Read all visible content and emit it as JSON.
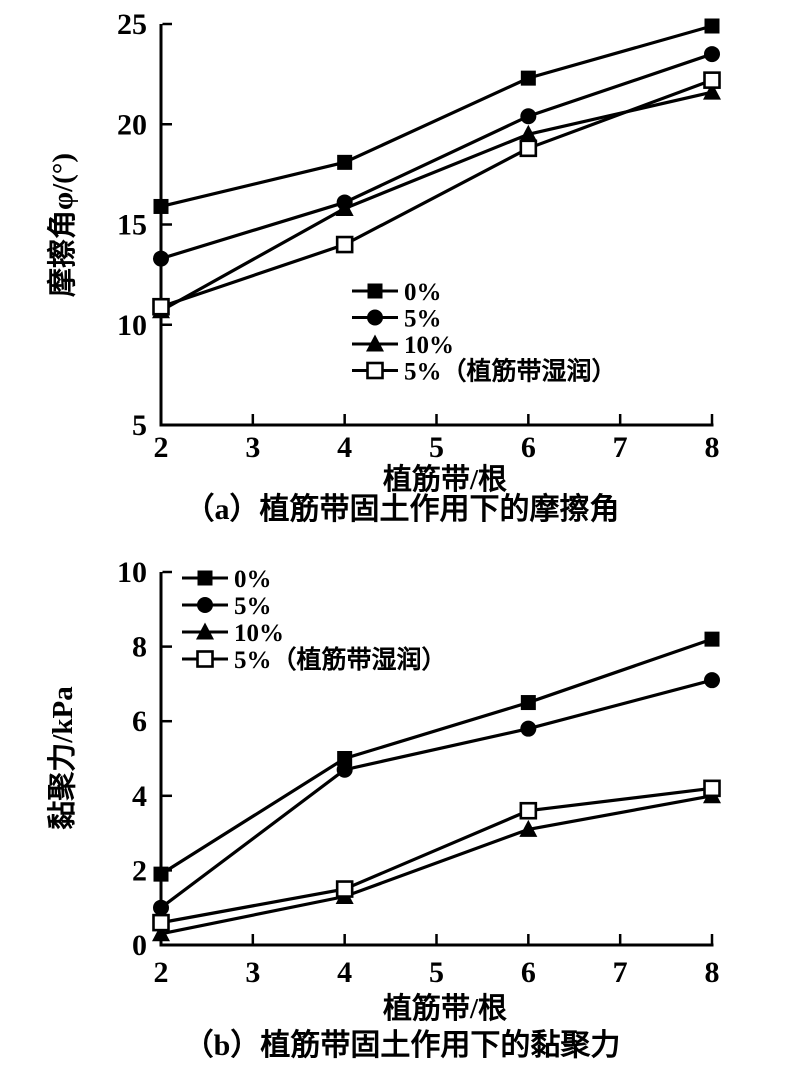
{
  "figure": {
    "background": "#ffffff",
    "ink_color": "#000000"
  },
  "chart_data": [
    {
      "type": "line",
      "panel": "a",
      "caption": "（a）植筋带固土作用下的摩擦角",
      "xlabel": "植筋带/根",
      "ylabel": "摩擦角φ/(°)",
      "x": [
        2,
        4,
        6,
        8
      ],
      "xlim": [
        2,
        8
      ],
      "ylim": [
        5,
        25
      ],
      "xticks": [
        2,
        3,
        4,
        5,
        6,
        7,
        8
      ],
      "yticks": [
        5,
        10,
        15,
        20,
        25
      ],
      "grid": false,
      "legend_position": "inside-bottom-center",
      "series": [
        {
          "name": "0%",
          "marker": "filled-square",
          "values": [
            15.9,
            18.1,
            22.3,
            24.9
          ]
        },
        {
          "name": "5%",
          "marker": "filled-circle",
          "values": [
            13.3,
            16.1,
            20.4,
            23.5
          ]
        },
        {
          "name": "10%",
          "marker": "filled-triangle",
          "values": [
            10.7,
            15.8,
            19.5,
            21.6
          ]
        },
        {
          "name": "5%（植筋带湿润）",
          "marker": "open-square",
          "values": [
            10.9,
            14.0,
            18.8,
            22.2
          ]
        }
      ]
    },
    {
      "type": "line",
      "panel": "b",
      "caption": "（b）植筋带固土作用下的黏聚力",
      "xlabel": "植筋带/根",
      "ylabel": "黏聚力/kPa",
      "x": [
        2,
        4,
        6,
        8
      ],
      "xlim": [
        2,
        8
      ],
      "ylim": [
        0,
        10
      ],
      "xticks": [
        2,
        3,
        4,
        5,
        6,
        7,
        8
      ],
      "yticks": [
        0,
        2,
        4,
        6,
        8,
        10
      ],
      "grid": false,
      "legend_position": "inside-top-left",
      "series": [
        {
          "name": "0%",
          "marker": "filled-square",
          "values": [
            1.9,
            5.0,
            6.5,
            8.2
          ]
        },
        {
          "name": "5%",
          "marker": "filled-circle",
          "values": [
            1.0,
            4.7,
            5.8,
            7.1
          ]
        },
        {
          "name": "10%",
          "marker": "filled-triangle",
          "values": [
            0.3,
            1.3,
            3.1,
            4.0
          ]
        },
        {
          "name": "5%（植筋带湿润）",
          "marker": "open-square",
          "values": [
            0.6,
            1.5,
            3.6,
            4.2
          ]
        }
      ]
    }
  ]
}
